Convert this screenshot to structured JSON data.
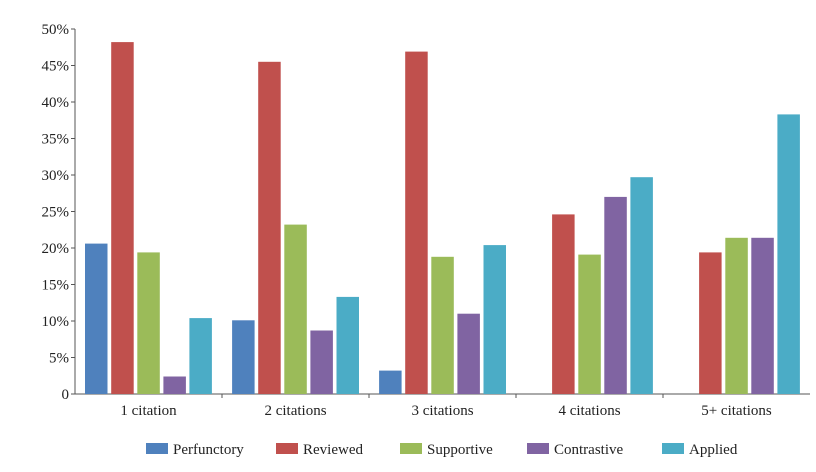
{
  "chart_data": {
    "type": "bar",
    "title": "",
    "xlabel": "",
    "ylabel": "",
    "categories": [
      "1 citation",
      "2 citations",
      "3 citations",
      "4 citations",
      "5+ citations"
    ],
    "series": [
      {
        "name": "Perfunctory",
        "color": "#4f81bd",
        "values": [
          20.6,
          10.1,
          3.2,
          0,
          0
        ]
      },
      {
        "name": "Reviewed",
        "color": "#c0504d",
        "values": [
          48.2,
          45.5,
          46.9,
          24.6,
          19.4
        ]
      },
      {
        "name": "Supportive",
        "color": "#9bbb59",
        "values": [
          19.4,
          23.2,
          18.8,
          19.1,
          21.4
        ]
      },
      {
        "name": "Contrastive",
        "color": "#8064a2",
        "values": [
          2.4,
          8.7,
          11.0,
          27.0,
          21.4
        ]
      },
      {
        "name": "Applied",
        "color": "#4bacc6",
        "values": [
          10.4,
          13.3,
          20.4,
          29.7,
          38.3
        ]
      }
    ],
    "ylim": [
      0,
      50
    ],
    "yticks": [
      "0",
      "5%",
      "10%",
      "15%",
      "20%",
      "25%",
      "30%",
      "35%",
      "40%",
      "45%",
      "50%"
    ],
    "ytick_values": [
      0,
      5,
      10,
      15,
      20,
      25,
      30,
      35,
      40,
      45,
      50
    ],
    "grid": false,
    "legend": "bottom"
  }
}
